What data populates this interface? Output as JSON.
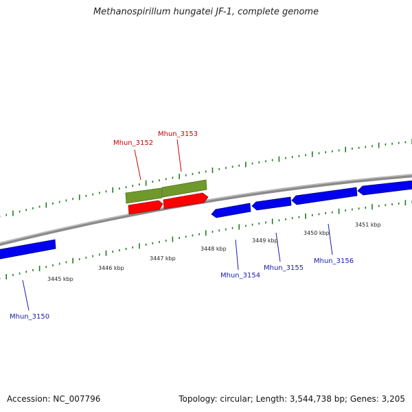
{
  "title": "Methanospirillum hungatei JF-1, complete genome",
  "footer": {
    "accession": "Accession: NC_007796",
    "summary": "Topology: circular; Length: 3,544,738 bp; Genes: 3,205"
  },
  "colors": {
    "backbone": "#8a8a8a",
    "tick": "#1e7a1e",
    "forward_green": "#6f9a2b",
    "forward_red": "#ff0000",
    "reverse_blue": "#0000ee",
    "label_red": "#cc0000",
    "label_blue": "#1a1aa8"
  },
  "scale": {
    "unit": "kbp",
    "tick_labels": [
      "3445 kbp",
      "3446 kbp",
      "3447 kbp",
      "3448 kbp",
      "3449 kbp",
      "3450 kbp",
      "3451 kbp"
    ]
  },
  "features": [
    {
      "name": "Mhun_3150",
      "strand": "reverse",
      "color": "blue"
    },
    {
      "name": "Mhun_3152",
      "strand": "forward",
      "color": "red"
    },
    {
      "name": "Mhun_3153",
      "strand": "forward",
      "color": "red"
    },
    {
      "name": "Mhun_3154",
      "strand": "reverse",
      "color": "blue"
    },
    {
      "name": "Mhun_3155",
      "strand": "reverse",
      "color": "blue"
    },
    {
      "name": "Mhun_3156",
      "strand": "reverse",
      "color": "blue"
    }
  ]
}
